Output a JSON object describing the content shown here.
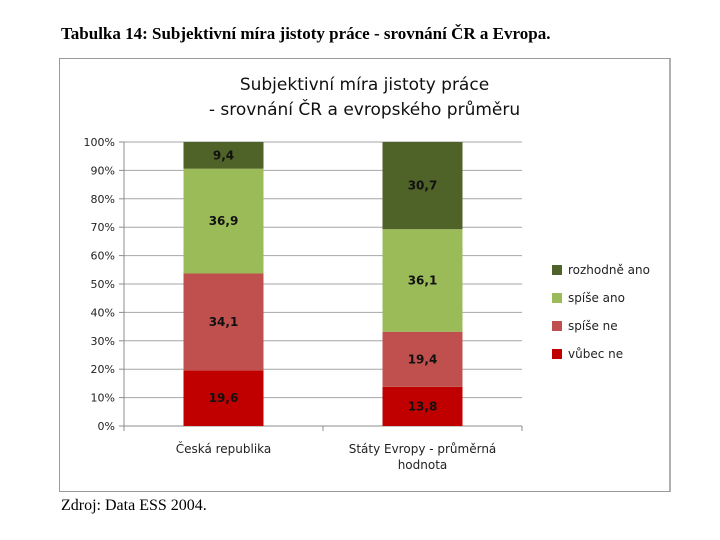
{
  "caption": "Tabulka 14: Subjektivní míra jistoty práce - srovnání ČR a Evropa.",
  "source": "Zdroj: Data ESS 2004.",
  "chart_data": {
    "type": "bar",
    "stacked": true,
    "percent": true,
    "title_lines": [
      "Subjektivní míra jistoty práce",
      "- srovnání ČR a evropského průměru"
    ],
    "categories": [
      [
        "Česká republika"
      ],
      [
        "Státy Evropy - průměrná",
        "hodnota"
      ]
    ],
    "series": [
      {
        "name": "vůbec ne",
        "color": "#c00000",
        "values": [
          19.6,
          13.8
        ]
      },
      {
        "name": "spíše ne",
        "color": "#c0504d",
        "values": [
          34.1,
          19.4
        ]
      },
      {
        "name": "spíše ano",
        "color": "#9bbb59",
        "values": [
          36.9,
          36.1
        ]
      },
      {
        "name": "rozhodně ano",
        "color": "#4f6228",
        "values": [
          9.4,
          30.7
        ]
      }
    ],
    "legend_order": [
      "rozhodně ano",
      "spíše ano",
      "spíše ne",
      "vůbec ne"
    ],
    "legend_position": "right",
    "y_ticks": [
      "0%",
      "10%",
      "20%",
      "30%",
      "40%",
      "50%",
      "60%",
      "70%",
      "80%",
      "90%",
      "100%"
    ],
    "ylim": [
      0,
      100
    ],
    "grid": true,
    "xlabel": "",
    "ylabel": ""
  }
}
